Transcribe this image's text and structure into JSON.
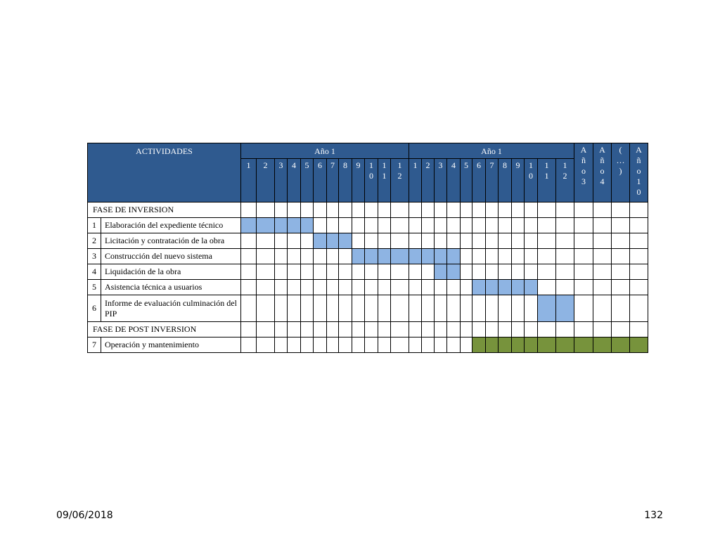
{
  "table": {
    "header": {
      "activities": "ACTIVIDADES",
      "year1": "Año 1",
      "year2": "Año 1",
      "months1": [
        "1",
        "2",
        "3",
        "4",
        "5",
        "6",
        "7",
        "8",
        "9",
        "10",
        "11",
        "12"
      ],
      "months2": [
        "1",
        "2",
        "3",
        "4",
        "5",
        "6",
        "7",
        "8",
        "9",
        "10",
        "11",
        "12"
      ],
      "later_years": [
        "Año3",
        "Año4",
        "(…)",
        "Año10"
      ]
    },
    "phases": [
      {
        "title": "FASE DE INVERSION",
        "activities": [
          {
            "num": "1",
            "name": "Elaboración del expediente técnico",
            "bars": [
              [
                1,
                5
              ]
            ],
            "color": "blue"
          },
          {
            "num": "2",
            "name": "Licitación y contratación de la obra",
            "bars": [
              [
                6,
                8
              ]
            ],
            "color": "blue"
          },
          {
            "num": "3",
            "name": "Construcción del nuevo sistema",
            "bars": [
              [
                9,
                16
              ]
            ],
            "color": "blue"
          },
          {
            "num": "4",
            "name": "Liquidación de la obra",
            "bars": [
              [
                15,
                16
              ]
            ],
            "color": "blue"
          },
          {
            "num": "5",
            "name": "Asistencia técnica a usuarios",
            "bars": [
              [
                18,
                22
              ]
            ],
            "color": "blue"
          },
          {
            "num": "6",
            "name": "Informe de evaluación culminación del PIP",
            "bars": [
              [
                23,
                24
              ]
            ],
            "color": "blue"
          }
        ]
      },
      {
        "title": "FASE DE POST INVERSION",
        "activities": [
          {
            "num": "7",
            "name": "Operación y mantenimiento",
            "bars": [
              [
                18,
                28
              ]
            ],
            "color": "green"
          }
        ]
      }
    ],
    "colors": {
      "header": "#2f5a8f",
      "bar_blue": "#8eb4e3",
      "bar_green": "#77933c"
    }
  },
  "footer": {
    "date": "09/06/2018",
    "page": "132"
  }
}
